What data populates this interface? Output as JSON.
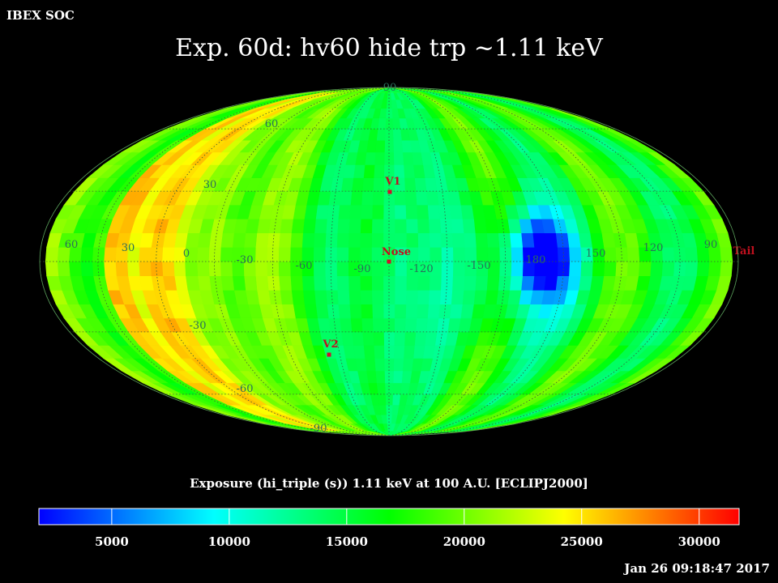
{
  "header": {
    "org": "IBEX SOC",
    "title": "Exp.   60d: hv60 hide trp ~1.11 keV",
    "timestamp": "Jan 26 09:18:47 2017"
  },
  "map": {
    "projection": "Mollweide",
    "longitude_labels": [
      {
        "text": "60",
        "lon": 60
      },
      {
        "text": "30",
        "lon": 30
      },
      {
        "text": "0",
        "lon": 0
      },
      {
        "text": "-30",
        "lon": -30
      },
      {
        "text": "-60",
        "lon": -60
      },
      {
        "text": "-90",
        "lon": -90
      },
      {
        "text": "-120",
        "lon": -120
      },
      {
        "text": "-150",
        "lon": -150
      },
      {
        "text": "180",
        "lon": 180
      },
      {
        "text": "150",
        "lon": 150
      },
      {
        "text": "120",
        "lon": 120
      },
      {
        "text": "90",
        "lon": 90
      }
    ],
    "latitude_labels": [
      {
        "text": "90",
        "lat": 90
      },
      {
        "text": "60",
        "lat": 60
      },
      {
        "text": "30",
        "lat": 30
      },
      {
        "text": "-30",
        "lat": -30
      },
      {
        "text": "-60",
        "lat": -60
      },
      {
        "text": "-90",
        "lat": -90
      }
    ],
    "markers": [
      {
        "name": "V1",
        "label": "V1"
      },
      {
        "name": "Nose",
        "label": "Nose"
      },
      {
        "name": "V2",
        "label": "V2"
      },
      {
        "name": "Tail",
        "label": "Tail"
      }
    ]
  },
  "colorbar": {
    "title": "Exposure (hi_triple (s))  1.11 keV at 100 A.U. [ECLIPJ2000]",
    "range": [
      1900,
      31700
    ],
    "ticks": [
      "5000",
      "10000",
      "15000",
      "20000",
      "25000",
      "30000"
    ],
    "colors": [
      "#0000ff",
      "#00ffff",
      "#00ff00",
      "#ffff00",
      "#ff0000"
    ]
  }
}
